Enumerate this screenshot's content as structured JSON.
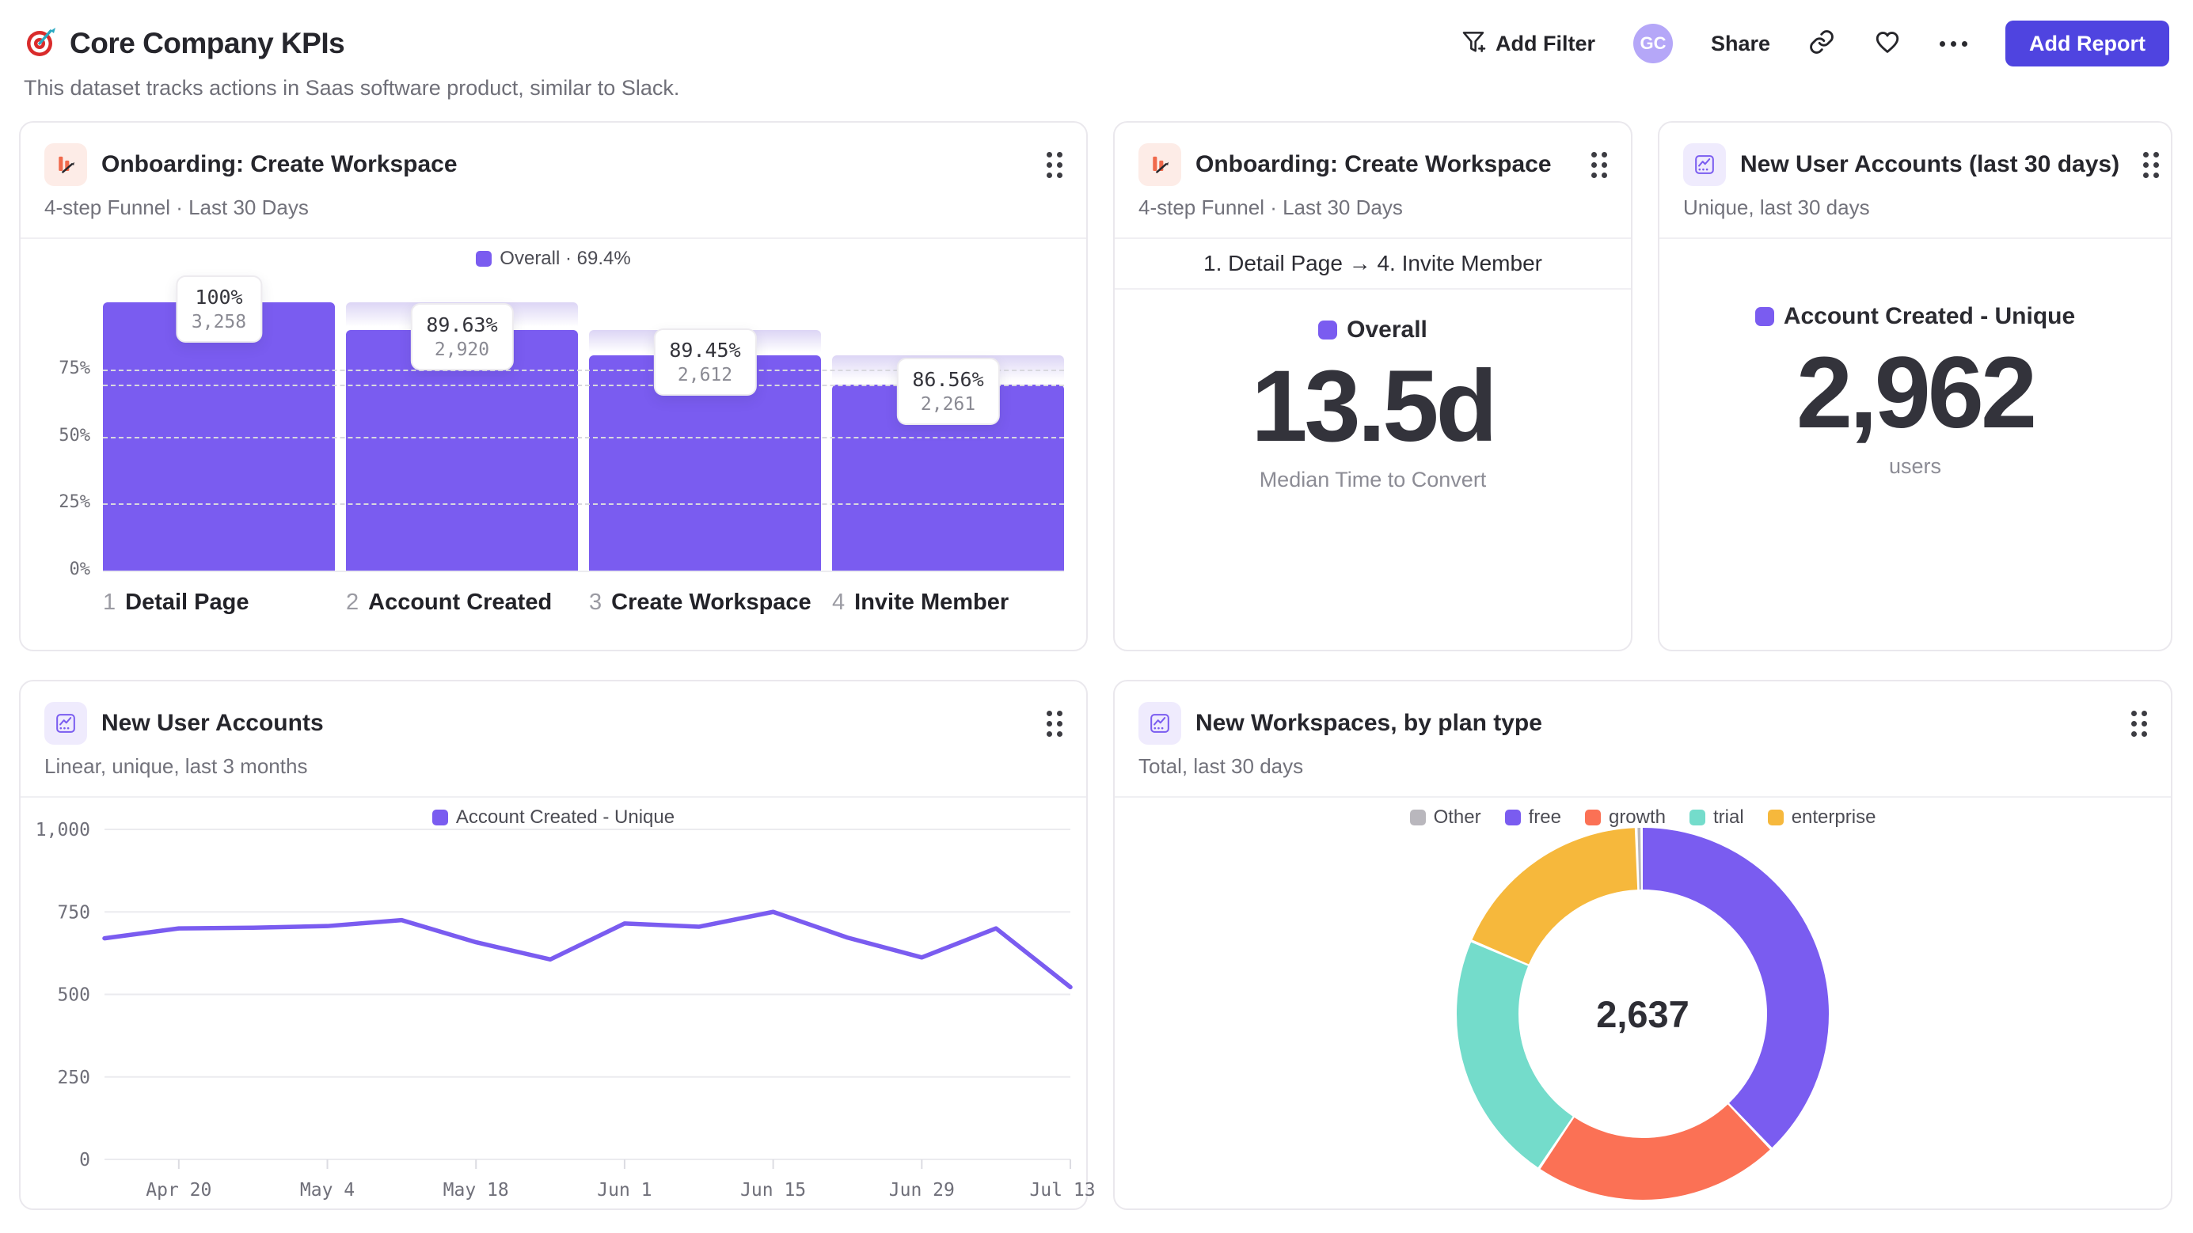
{
  "page": {
    "title": "Core Company KPIs",
    "subtitle": "This dataset tracks actions in Saas software product, similar to Slack.",
    "title_icon": "target"
  },
  "header": {
    "add_filter_label": "Add Filter",
    "avatar_initials": "GC",
    "share_label": "Share",
    "add_report_label": "Add Report",
    "icons": [
      "filter-plus-icon",
      "link-icon",
      "heart-icon",
      "ellipsis-icon"
    ]
  },
  "colors": {
    "accent_purple": "#7A5CF0",
    "button_purple": "#4F44E0",
    "avatar_bg": "#B5A7F8",
    "coral": "#FB7155",
    "teal": "#74DCCB",
    "yellow": "#F6B83C",
    "gray": "#B9B7BD"
  },
  "cards": {
    "funnel": {
      "title": "Onboarding: Create Workspace",
      "subtitle": "4-step Funnel · Last 30 Days"
    },
    "time_to_convert": {
      "title": "Onboarding: Create Workspace",
      "subtitle": "4-step Funnel · Last 30 Days"
    },
    "new_accounts_30d": {
      "title": "New User Accounts (last 30 days)",
      "subtitle": "Unique, last 30 days"
    },
    "accounts_trend": {
      "title": "New User Accounts",
      "subtitle": "Linear, unique, last 3 months"
    },
    "workspaces_by_plan": {
      "title": "New Workspaces, by plan type",
      "subtitle": "Total, last 30 days"
    }
  },
  "chart_data": [
    {
      "id": "onboarding-funnel",
      "type": "bar",
      "subtype": "funnel",
      "title": "Onboarding: Create Workspace",
      "legend": "Overall · 69.4%",
      "overall_conversion_pct": 69.4,
      "y_ticks_pct": [
        75,
        50,
        25,
        0
      ],
      "steps": [
        {
          "num": 1,
          "label": "Detail Page",
          "count": 3258,
          "count_label": "3,258",
          "conv_from_prev_label": "100%",
          "pct_of_first": 100
        },
        {
          "num": 2,
          "label": "Account Created",
          "count": 2920,
          "count_label": "2,920",
          "conv_from_prev_label": "89.63%",
          "pct_of_first": 89.63
        },
        {
          "num": 3,
          "label": "Create Workspace",
          "count": 2612,
          "count_label": "2,612",
          "conv_from_prev_label": "89.45%",
          "pct_of_first": 80.17
        },
        {
          "num": 4,
          "label": "Invite Member",
          "count": 2261,
          "count_label": "2,261",
          "conv_from_prev_label": "86.56%",
          "pct_of_first": 69.4
        }
      ],
      "bar_color": "#7A5CF0"
    },
    {
      "id": "time-to-convert",
      "type": "table",
      "subtype": "metric",
      "title": "Onboarding: Create Workspace",
      "range": "1. Detail Page → 4. Invite Member",
      "legend": "Overall",
      "value": "13.5d",
      "caption": "Median Time to Convert"
    },
    {
      "id": "new-accounts-30d",
      "type": "table",
      "subtype": "metric",
      "title": "New User Accounts (last 30 days)",
      "legend": "Account Created - Unique",
      "value": "2,962",
      "caption": "users"
    },
    {
      "id": "accounts-trend",
      "type": "line",
      "title": "New User Accounts",
      "legend": "Account Created - Unique",
      "ylim": [
        0,
        1000
      ],
      "y_ticks": [
        0,
        250,
        500,
        750,
        1000
      ],
      "y_tick_labels": [
        "0",
        "250",
        "500",
        "750",
        "1,000"
      ],
      "x_tick_labels": [
        "Apr 20",
        "May 4",
        "May 18",
        "Jun 1",
        "Jun 15",
        "Jun 29",
        "Jul 13"
      ],
      "x_tick_indices": [
        1,
        3,
        5,
        7,
        9,
        11,
        13
      ],
      "values": [
        670,
        700,
        702,
        707,
        725,
        658,
        606,
        715,
        705,
        750,
        672,
        612,
        700,
        522
      ],
      "line_color": "#7A5CF0",
      "grid": "horizontal"
    },
    {
      "id": "workspaces-by-plan",
      "type": "pie",
      "subtype": "donut",
      "title": "New Workspaces, by plan type",
      "center_label": "2,637",
      "total": 2637,
      "slices": [
        {
          "label": "Other",
          "value": 13,
          "color": "#B9B7BD"
        },
        {
          "label": "free",
          "value": 1002,
          "color": "#7A5CF0"
        },
        {
          "label": "growth",
          "value": 567,
          "color": "#FB7155"
        },
        {
          "label": "trial",
          "value": 580,
          "color": "#74DCCB"
        },
        {
          "label": "enterprise",
          "value": 475,
          "color": "#F6B83C"
        }
      ],
      "draw_order": [
        "free",
        "growth",
        "trial",
        "enterprise",
        "Other"
      ],
      "legend_position": "top"
    }
  ]
}
